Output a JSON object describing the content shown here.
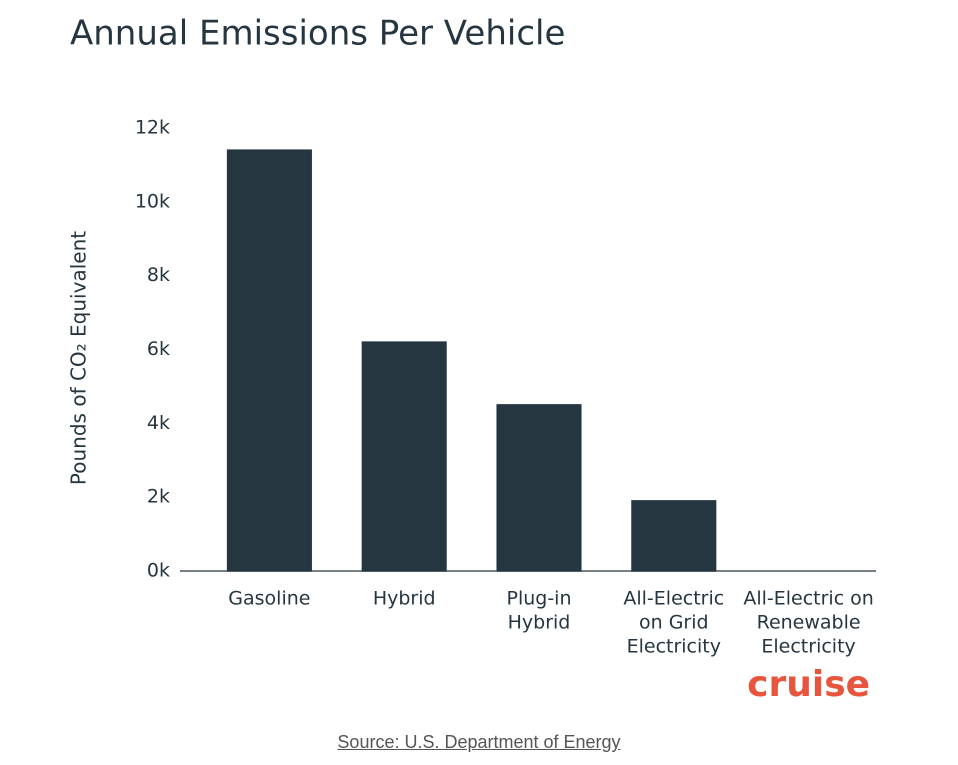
{
  "chart_data": {
    "type": "bar",
    "title": "Annual Emissions Per Vehicle",
    "y_label": "Pounds of CO₂ Equivalent",
    "categories": [
      [
        "Gasoline"
      ],
      [
        "Hybrid"
      ],
      [
        "Plug-in",
        "Hybrid"
      ],
      [
        "All-Electric",
        "on Grid",
        "Electricity"
      ],
      [
        "All-Electric on",
        "Renewable",
        "Electricity"
      ]
    ],
    "values": [
      11400,
      6200,
      4500,
      1900,
      0
    ],
    "colors": [
      "#253640",
      "#253640",
      "#253640",
      "#253640",
      "#e8553f"
    ],
    "ylim": [
      0,
      12000
    ],
    "yticks": [
      {
        "value": 0,
        "label": "0k"
      },
      {
        "value": 2000,
        "label": "2k"
      },
      {
        "value": 4000,
        "label": "4k"
      },
      {
        "value": 6000,
        "label": "6k"
      },
      {
        "value": 8000,
        "label": "8k"
      },
      {
        "value": 10000,
        "label": "10k"
      },
      {
        "value": 12000,
        "label": "12k"
      }
    ],
    "grid": false,
    "brand": "cruise",
    "source": "Source: U.S. Department of Energy"
  }
}
